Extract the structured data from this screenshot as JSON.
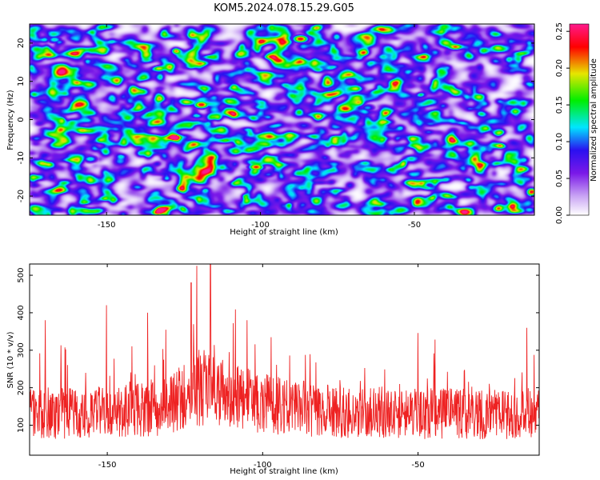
{
  "title": "KOM5.2024.078.15.29.G05",
  "chart_data": [
    {
      "type": "heatmap",
      "xlabel": "Height of straight line (km)",
      "ylabel": "Frequency (Hz)",
      "xlim": [
        -175,
        -11
      ],
      "ylim": [
        -25,
        25
      ],
      "xticks": [
        -150,
        -100,
        -50
      ],
      "yticks": [
        -20,
        -10,
        0,
        10,
        20
      ],
      "colorbar": {
        "label": "Normalized spectral amplitude",
        "range": [
          0,
          0.26
        ],
        "ticks": [
          "0.00",
          "0.05",
          "0.10",
          "0.15",
          "0.20",
          "0.25"
        ]
      },
      "colormap": [
        "#ffffff",
        "#c9a4f4",
        "#7a18e8",
        "#2a10f0",
        "#00e6ff",
        "#00ee00",
        "#e6e600",
        "#ff0000",
        "#ff1a8c"
      ],
      "peaks": [
        {
          "x": -119.3,
          "y": 4.0,
          "v": 0.24
        },
        {
          "x": -101.5,
          "y": -12.3,
          "v": 0.23
        },
        {
          "x": -87.1,
          "y": 21.2,
          "v": 0.24
        },
        {
          "x": -167.0,
          "y": 21.0,
          "v": 0.13
        },
        {
          "x": -155.4,
          "y": -10.2,
          "v": 0.13
        },
        {
          "x": -59.9,
          "y": -1.8,
          "v": 0.12
        },
        {
          "x": -65.3,
          "y": 3.2,
          "v": 0.11
        },
        {
          "x": -12.8,
          "y": -23.5,
          "v": 0.12
        }
      ]
    },
    {
      "type": "line",
      "xlabel": "Height of straight line (km)",
      "ylabel": "SNR (10 * v/v)",
      "xlim": [
        -175,
        -11
      ],
      "ylim": [
        20,
        530
      ],
      "xticks": [
        -150,
        -100,
        -50
      ],
      "yticks": [
        100,
        200,
        300,
        400,
        500
      ],
      "color": "#ee2222",
      "series": [
        {
          "x_range": [
            -175,
            -11
          ],
          "n_points": 1400,
          "envelope": [
            {
              "x": -175,
              "y": 125
            },
            {
              "x": -150,
              "y": 125
            },
            {
              "x": -130,
              "y": 145
            },
            {
              "x": -120,
              "y": 190
            },
            {
              "x": -110,
              "y": 165
            },
            {
              "x": -100,
              "y": 150
            },
            {
              "x": -80,
              "y": 130
            },
            {
              "x": -50,
              "y": 125
            },
            {
              "x": -11,
              "y": 120
            }
          ],
          "peaks": [
            {
              "x": -121.2,
              "y": 525
            },
            {
              "x": -116.8,
              "y": 530
            },
            {
              "x": -123.0,
              "y": 480
            },
            {
              "x": -150.3,
              "y": 420
            },
            {
              "x": -105.0,
              "y": 380
            },
            {
              "x": -137.0,
              "y": 400
            },
            {
              "x": -170.0,
              "y": 380
            },
            {
              "x": -15.0,
              "y": 360
            }
          ]
        }
      ]
    }
  ]
}
